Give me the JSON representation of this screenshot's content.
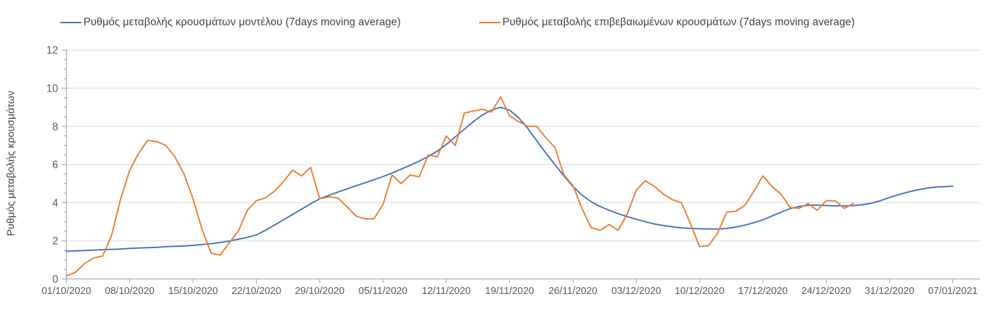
{
  "chart_data": {
    "type": "line",
    "title": "",
    "xlabel": "",
    "ylabel": "Ρυθμός μεταβολής κρουσμάτων",
    "ylim": [
      0,
      12
    ],
    "y_major_ticks": [
      0,
      2,
      4,
      6,
      8,
      10,
      12
    ],
    "y_minor_step": 0.5,
    "grid": "horizontal-major-only",
    "legend_position": "top",
    "x_start_date": "01/10/2020",
    "x_tick_interval_days": 7,
    "x_tick_labels": [
      "01/10/2020",
      "08/10/2020",
      "15/10/2020",
      "22/10/2020",
      "29/10/2020",
      "05/11/2020",
      "12/11/2020",
      "19/11/2020",
      "26/11/2020",
      "03/12/2020",
      "10/12/2020",
      "17/12/2020",
      "24/12/2020",
      "31/12/2020",
      "07/01/2021"
    ],
    "series": [
      {
        "name": "Ρυθμός μεταβολής κρουσμάτων μοντέλου (7days moving average)",
        "color": "#4472C4",
        "start_day": 0,
        "values": [
          1.45,
          1.47,
          1.49,
          1.51,
          1.53,
          1.55,
          1.57,
          1.6,
          1.62,
          1.64,
          1.66,
          1.69,
          1.71,
          1.73,
          1.76,
          1.8,
          1.85,
          1.91,
          1.99,
          2.08,
          2.18,
          2.3,
          2.55,
          2.82,
          3.1,
          3.38,
          3.66,
          3.94,
          4.2,
          4.38,
          4.55,
          4.72,
          4.88,
          5.04,
          5.2,
          5.37,
          5.55,
          5.75,
          5.96,
          6.18,
          6.42,
          6.7,
          7.05,
          7.45,
          7.85,
          8.25,
          8.6,
          8.85,
          9.0,
          8.85,
          8.45,
          7.9,
          7.25,
          6.6,
          6.0,
          5.4,
          4.85,
          4.4,
          4.05,
          3.8,
          3.6,
          3.42,
          3.27,
          3.13,
          3.0,
          2.88,
          2.8,
          2.73,
          2.68,
          2.65,
          2.63,
          2.62,
          2.62,
          2.65,
          2.72,
          2.82,
          2.95,
          3.1,
          3.3,
          3.5,
          3.68,
          3.8,
          3.86,
          3.87,
          3.85,
          3.83,
          3.83,
          3.85,
          3.89,
          3.97,
          4.1,
          4.27,
          4.42,
          4.55,
          4.66,
          4.75,
          4.81,
          4.84,
          4.86
        ]
      },
      {
        "name": "Ρυθμός μεταβολής επιβεβαιωμένων κρουσμάτων (7days moving average)",
        "color": "#ED7D31",
        "start_day": 0,
        "values": [
          0.15,
          0.35,
          0.8,
          1.1,
          1.2,
          2.3,
          4.2,
          5.7,
          6.6,
          7.27,
          7.2,
          7.0,
          6.4,
          5.5,
          4.2,
          2.6,
          1.35,
          1.25,
          1.9,
          2.5,
          3.6,
          4.1,
          4.25,
          4.6,
          5.1,
          5.7,
          5.4,
          5.85,
          4.2,
          4.3,
          4.25,
          3.8,
          3.3,
          3.15,
          3.15,
          3.9,
          5.45,
          5.0,
          5.45,
          5.35,
          6.5,
          6.4,
          7.5,
          7.0,
          8.7,
          8.8,
          8.9,
          8.75,
          9.55,
          8.55,
          8.25,
          8.0,
          8.0,
          7.4,
          6.9,
          5.45,
          4.9,
          3.7,
          2.7,
          2.55,
          2.85,
          2.55,
          3.4,
          4.65,
          5.15,
          4.85,
          4.45,
          4.15,
          4.0,
          2.9,
          1.7,
          1.75,
          2.4,
          3.5,
          3.55,
          3.85,
          4.6,
          5.4,
          4.85,
          4.45,
          3.75,
          3.7,
          3.95,
          3.6,
          4.1,
          4.1,
          3.7,
          3.95
        ]
      }
    ]
  },
  "colors": {
    "axis_line": "#A6A6A6",
    "gridline": "#D9D9D9",
    "tick_text": "#595959",
    "legend_text": "#404040",
    "background": "#FFFFFF"
  }
}
